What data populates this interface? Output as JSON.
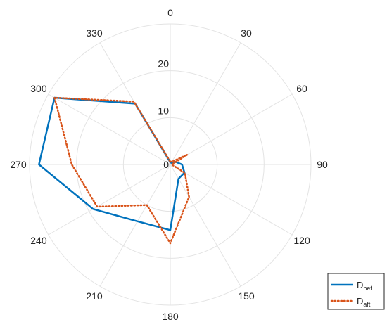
{
  "chart_data": {
    "type": "polar-line",
    "theta_zero": "top",
    "theta_direction": "clockwise",
    "theta_ticks": [
      0,
      30,
      60,
      90,
      120,
      150,
      180,
      210,
      240,
      270,
      300,
      330
    ],
    "theta_tick_labels": [
      "0",
      "30",
      "60",
      "90",
      "120",
      "150",
      "180",
      "210",
      "240",
      "270",
      "300",
      "330"
    ],
    "r_ticks": [
      0,
      10,
      20
    ],
    "r_tick_labels": [
      "0",
      "10",
      "20"
    ],
    "rlim": [
      0,
      30
    ],
    "grid": true,
    "legend": {
      "position": "bottom-right",
      "entries": [
        {
          "main": "D",
          "sub": "bef"
        },
        {
          "main": "D",
          "sub": "aft"
        }
      ]
    },
    "series": [
      {
        "color": "#0072BD",
        "style": "solid",
        "theta": [
          0,
          30,
          60,
          90,
          120,
          150,
          180,
          210,
          240,
          270,
          300,
          330
        ],
        "r": [
          0.5,
          0.4,
          1.2,
          2.5,
          3.5,
          3.5,
          14.0,
          14.0,
          19.0,
          28.0,
          28.5,
          15.0
        ]
      },
      {
        "color": "#D95319",
        "style": "dotted",
        "theta": [
          0,
          30,
          60,
          90,
          120,
          150,
          180,
          210,
          240,
          270,
          300,
          330
        ],
        "r": [
          0.6,
          0.7,
          4.2,
          0.3,
          3.6,
          8.0,
          16.8,
          10.0,
          18.0,
          21.0,
          28.5,
          15.5
        ]
      }
    ]
  }
}
